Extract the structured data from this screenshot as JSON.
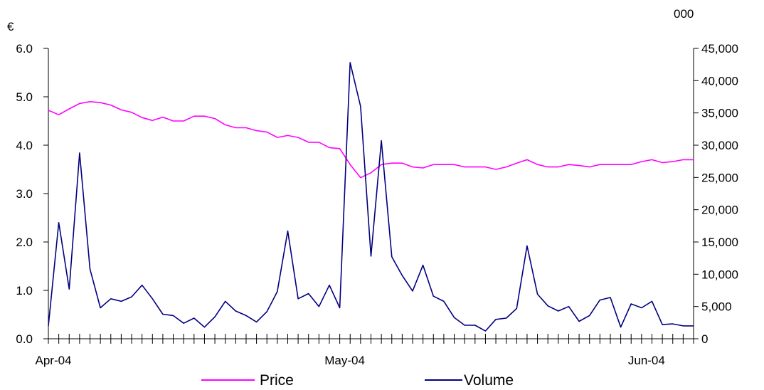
{
  "colors": {
    "price": "#ff00ff",
    "volume": "#000080",
    "axis": "#000000",
    "background": "#ffffff"
  },
  "chart_data": {
    "type": "line",
    "title": "",
    "left_unit": "€",
    "right_unit": "000",
    "x_tick_labels": [
      {
        "label": "Apr-04",
        "index": 0
      },
      {
        "label": "May-04",
        "index": 28
      },
      {
        "label": "Jun-04",
        "index": 57
      }
    ],
    "y_left": {
      "min": 0,
      "max": 6,
      "step": 1,
      "tick_labels": [
        "0.0",
        "1.0",
        "2.0",
        "3.0",
        "4.0",
        "5.0",
        "6.0"
      ]
    },
    "y_right": {
      "min": 0,
      "max": 45000,
      "step": 5000,
      "tick_labels": [
        "0",
        "5,000",
        "10,000",
        "15,000",
        "20,000",
        "25,000",
        "30,000",
        "35,000",
        "40,000",
        "45,000"
      ]
    },
    "grid": false,
    "legend_position": "bottom",
    "series": [
      {
        "name": "Price",
        "axis": "left",
        "values": [
          4.72,
          4.63,
          4.75,
          4.86,
          4.9,
          4.88,
          4.83,
          4.73,
          4.68,
          4.57,
          4.51,
          4.58,
          4.5,
          4.5,
          4.6,
          4.6,
          4.55,
          4.42,
          4.36,
          4.36,
          4.3,
          4.27,
          4.16,
          4.2,
          4.16,
          4.06,
          4.06,
          3.95,
          3.93,
          3.6,
          3.33,
          3.43,
          3.6,
          3.63,
          3.63,
          3.55,
          3.53,
          3.6,
          3.6,
          3.6,
          3.55,
          3.55,
          3.55,
          3.5,
          3.55,
          3.63,
          3.7,
          3.6,
          3.55,
          3.55,
          3.6,
          3.58,
          3.55,
          3.6,
          3.6,
          3.6,
          3.6,
          3.66,
          3.7,
          3.64,
          3.66,
          3.7,
          3.7
        ]
      },
      {
        "name": "Volume",
        "axis": "right",
        "values": [
          2000,
          18000,
          7700,
          28800,
          10800,
          4800,
          6200,
          5800,
          6500,
          8300,
          6200,
          3800,
          3600,
          2400,
          3200,
          1800,
          3400,
          5800,
          4300,
          3600,
          2600,
          4200,
          7300,
          16700,
          6200,
          7000,
          5000,
          8300,
          4800,
          42800,
          36000,
          12800,
          30700,
          12700,
          9800,
          7400,
          11400,
          6600,
          5800,
          3300,
          2100,
          2100,
          1200,
          3000,
          3200,
          4700,
          14400,
          6900,
          5100,
          4300,
          5000,
          2700,
          3600,
          6000,
          6400,
          1800,
          5400,
          4800,
          5800,
          2200,
          2300,
          2000,
          2000
        ]
      }
    ]
  }
}
